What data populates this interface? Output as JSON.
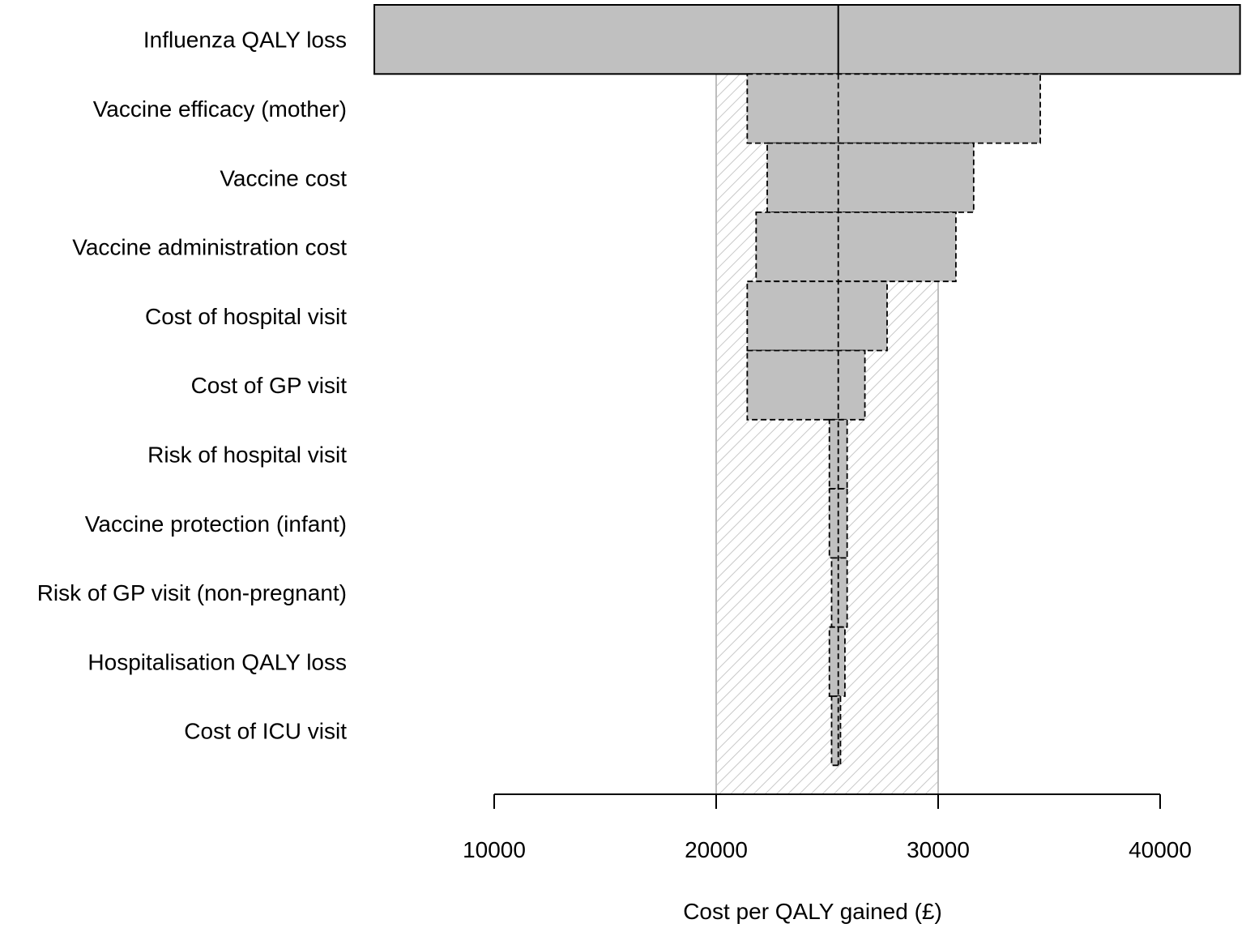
{
  "chart_data": {
    "type": "bar",
    "subtype": "tornado",
    "title": "",
    "xlabel": "Cost per QALY gained (£)",
    "ylabel": "",
    "xlim": [
      4600,
      43600
    ],
    "xticks": [
      10000,
      20000,
      30000,
      40000
    ],
    "base_case": 25500,
    "threshold_band": [
      20000,
      30000
    ],
    "grid": false,
    "categories": [
      "Influenza QALY loss",
      "Vaccine efficacy (mother)",
      "Vaccine cost",
      "Vaccine administration cost",
      "Cost of hospital visit",
      "Cost of GP visit",
      "Risk of hospital visit",
      "Vaccine protection (infant)",
      "Risk of GP visit (non-pregnant)",
      "Hospitalisation QALY loss",
      "Cost of ICU visit"
    ],
    "series": [
      {
        "values": [
          4600,
          21400,
          22300,
          21800,
          21400,
          21400,
          25100,
          25100,
          25200,
          25100,
          25200
        ]
      },
      {
        "values": [
          43600,
          34600,
          31600,
          30800,
          27700,
          26700,
          25900,
          25900,
          25900,
          25800,
          25600
        ]
      }
    ],
    "colors": {
      "bar": "#c0c0c0",
      "band_hatch": "#c8c8c8",
      "band_border": "#bdbdbd",
      "line": "#000000"
    }
  }
}
